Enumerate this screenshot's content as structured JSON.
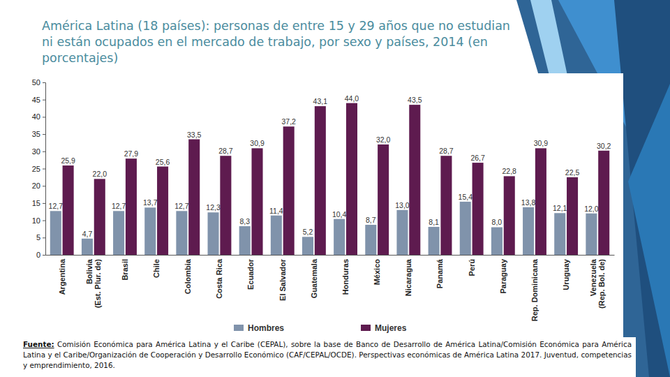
{
  "chart_data": {
    "type": "bar",
    "title": "América Latina (18 países): personas de entre 15 y 29 años que no estudian ni están ocupados en el mercado de trabajo, por sexo y países, 2014 (en porcentajes)",
    "source": {
      "label": "Fuente:",
      "text": "Comisión Económica para América Latina y el Caribe (CEPAL), sobre la base de Banco de Desarrollo de América Latina/Comisión Económica para América Latina y el Caribe/Organización de Cooperación y Desarrollo Económico (CAF/CEPAL/OCDE). Perspectivas económicas de América Latina 2017. Juventud, competencias y emprendimiento, 2016."
    },
    "categories": [
      "Argentina",
      "Bolivia (Est. Plur. de)",
      "Brasil",
      "Chile",
      "Colombia",
      "Costa Rica",
      "Ecuador",
      "El Salvador",
      "Guatemala",
      "Honduras",
      "México",
      "Nicaragua",
      "Panamá",
      "Perú",
      "Paraguay",
      "Rep. Dominicana",
      "Uruguay",
      "Venezuela (Rep. Bol. de)"
    ],
    "series": [
      {
        "name": "Hombres",
        "color": "#8093ab",
        "values": [
          12.7,
          4.7,
          12.7,
          13.7,
          12.7,
          12.3,
          8.3,
          11.4,
          5.2,
          10.4,
          8.7,
          13.0,
          8.1,
          15.4,
          8.0,
          13.8,
          12.1,
          12.0
        ],
        "value_labels": [
          "12,7",
          "4,7",
          "12,7",
          "13,7",
          "12,7",
          "12,3",
          "8,3",
          "11,4",
          "5,2",
          "10,4",
          "8,7",
          "13,0",
          "8,1",
          "15,4",
          "8,0",
          "13,8",
          "12,1",
          "12,0"
        ]
      },
      {
        "name": "Mujeres",
        "color": "#5e1b4f",
        "values": [
          25.9,
          22.0,
          27.9,
          25.6,
          33.5,
          28.7,
          30.9,
          37.2,
          43.1,
          44.0,
          32.0,
          43.5,
          28.7,
          26.7,
          22.8,
          30.9,
          22.5,
          30.2
        ],
        "value_labels": [
          "25,9",
          "22,0",
          "27,9",
          "25,6",
          "33,5",
          "28,7",
          "30,9",
          "37,2",
          "43,1",
          "44,0",
          "32,0",
          "43,5",
          "28,7",
          "26,7",
          "22,8",
          "30,9",
          "22,5",
          "30,2"
        ]
      }
    ],
    "ylim": [
      0,
      50
    ],
    "yticks": [
      0,
      5,
      10,
      15,
      20,
      25,
      30,
      35,
      40,
      45,
      50
    ],
    "grid": false,
    "legend": "bottom",
    "data_labels": true
  }
}
